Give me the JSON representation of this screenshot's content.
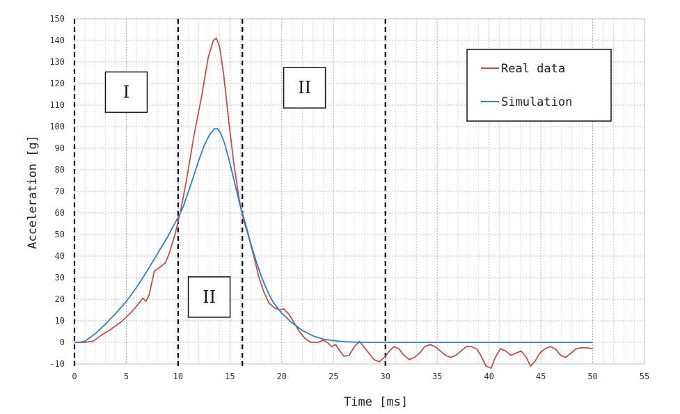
{
  "chart_data": {
    "type": "line",
    "xlabel": "Time [ms]",
    "ylabel": "Acceleration [g]",
    "xlim": [
      0,
      55
    ],
    "ylim": [
      -10,
      150
    ],
    "x_ticks": [
      0,
      5,
      10,
      15,
      20,
      25,
      30,
      35,
      40,
      45,
      50,
      55
    ],
    "y_ticks": [
      -10,
      0,
      10,
      20,
      30,
      40,
      50,
      60,
      70,
      80,
      90,
      100,
      110,
      120,
      130,
      140,
      150
    ],
    "grid": true,
    "legend_placement": "top-right",
    "series": [
      {
        "name": "Real data",
        "color": "#c0504d",
        "points": [
          [
            0,
            0
          ],
          [
            1,
            0
          ],
          [
            1.8,
            0.5
          ],
          [
            2.5,
            3
          ],
          [
            3.5,
            6
          ],
          [
            4.5,
            9.5
          ],
          [
            5.5,
            14
          ],
          [
            6.2,
            18
          ],
          [
            6.6,
            20.5
          ],
          [
            6.9,
            19
          ],
          [
            7.2,
            22
          ],
          [
            7.7,
            33
          ],
          [
            8.3,
            35
          ],
          [
            8.8,
            37
          ],
          [
            9.2,
            42
          ],
          [
            9.7,
            50
          ],
          [
            10.2,
            60
          ],
          [
            10.8,
            75
          ],
          [
            11.5,
            95
          ],
          [
            12.3,
            115
          ],
          [
            12.9,
            132
          ],
          [
            13.4,
            140
          ],
          [
            13.7,
            141
          ],
          [
            14,
            137
          ],
          [
            14.4,
            124
          ],
          [
            14.9,
            102
          ],
          [
            15.4,
            82
          ],
          [
            15.9,
            66
          ],
          [
            16.3,
            57
          ],
          [
            16.8,
            49
          ],
          [
            17.3,
            40
          ],
          [
            17.8,
            30
          ],
          [
            18.3,
            23
          ],
          [
            18.8,
            18
          ],
          [
            19.3,
            16
          ],
          [
            19.8,
            15
          ],
          [
            20.2,
            15.5
          ],
          [
            20.7,
            13
          ],
          [
            21.2,
            9
          ],
          [
            21.7,
            5
          ],
          [
            22.2,
            2
          ],
          [
            22.8,
            0
          ],
          [
            23.5,
            0
          ],
          [
            24,
            1
          ],
          [
            24.4,
            0
          ],
          [
            24.8,
            -2
          ],
          [
            25.2,
            -1
          ],
          [
            25.6,
            -4
          ],
          [
            26,
            -6.5
          ],
          [
            26.5,
            -6
          ],
          [
            27,
            -2
          ],
          [
            27.5,
            0.5
          ],
          [
            27.9,
            -2
          ],
          [
            28.4,
            -5
          ],
          [
            28.9,
            -8
          ],
          [
            29.4,
            -9
          ],
          [
            29.9,
            -7
          ],
          [
            30.4,
            -4
          ],
          [
            30.8,
            -2
          ],
          [
            31.3,
            -3
          ],
          [
            31.8,
            -6
          ],
          [
            32.3,
            -8
          ],
          [
            32.8,
            -7
          ],
          [
            33.3,
            -5
          ],
          [
            33.8,
            -2
          ],
          [
            34.3,
            -1
          ],
          [
            34.8,
            -2
          ],
          [
            35.3,
            -4
          ],
          [
            35.8,
            -6
          ],
          [
            36.3,
            -7
          ],
          [
            36.8,
            -6
          ],
          [
            37.3,
            -4
          ],
          [
            37.8,
            -2
          ],
          [
            38.3,
            -2
          ],
          [
            38.8,
            -3
          ],
          [
            39.2,
            -6
          ],
          [
            39.7,
            -11
          ],
          [
            40.2,
            -12
          ],
          [
            40.6,
            -7
          ],
          [
            41.1,
            -3
          ],
          [
            41.6,
            -4
          ],
          [
            42.1,
            -6
          ],
          [
            42.6,
            -5
          ],
          [
            43.1,
            -4
          ],
          [
            43.6,
            -7
          ],
          [
            44,
            -11
          ],
          [
            44.4,
            -9
          ],
          [
            44.9,
            -5
          ],
          [
            45.4,
            -3
          ],
          [
            45.9,
            -2
          ],
          [
            46.4,
            -3
          ],
          [
            46.9,
            -6
          ],
          [
            47.4,
            -7
          ],
          [
            47.9,
            -5
          ],
          [
            48.4,
            -3
          ],
          [
            48.9,
            -2.5
          ],
          [
            49.4,
            -2.5
          ],
          [
            50,
            -3
          ]
        ]
      },
      {
        "name": "Simulation",
        "color": "#2e7ebf",
        "points": [
          [
            0,
            0
          ],
          [
            0.5,
            0
          ],
          [
            1,
            0.5
          ],
          [
            2,
            4
          ],
          [
            3,
            8.5
          ],
          [
            4,
            13.5
          ],
          [
            5,
            19
          ],
          [
            6,
            25.5
          ],
          [
            7,
            33
          ],
          [
            8,
            41
          ],
          [
            9,
            49
          ],
          [
            10,
            58
          ],
          [
            10.5,
            63
          ],
          [
            11,
            70
          ],
          [
            11.5,
            77
          ],
          [
            12,
            84.5
          ],
          [
            12.5,
            91
          ],
          [
            13,
            96
          ],
          [
            13.5,
            99
          ],
          [
            13.8,
            99
          ],
          [
            14.1,
            97
          ],
          [
            14.5,
            92
          ],
          [
            15,
            83
          ],
          [
            15.5,
            73
          ],
          [
            16,
            63
          ],
          [
            16.5,
            55
          ],
          [
            17,
            46
          ],
          [
            17.5,
            38
          ],
          [
            18,
            31
          ],
          [
            18.5,
            25
          ],
          [
            19,
            20
          ],
          [
            19.5,
            16.5
          ],
          [
            20,
            13.5
          ],
          [
            21,
            9
          ],
          [
            22,
            5.5
          ],
          [
            23,
            3
          ],
          [
            24,
            1.5
          ],
          [
            25,
            0.8
          ],
          [
            26,
            0.3
          ],
          [
            27,
            0.1
          ],
          [
            28,
            0
          ],
          [
            50,
            0
          ]
        ]
      }
    ],
    "phase_lines_x": [
      0,
      10,
      16.2,
      30
    ],
    "region_labels": [
      {
        "text": "I",
        "x": 5,
        "y": 116
      },
      {
        "text": "II",
        "x": 22.2,
        "y": 118
      },
      {
        "text": "II",
        "x": 13,
        "y": 21
      }
    ]
  }
}
